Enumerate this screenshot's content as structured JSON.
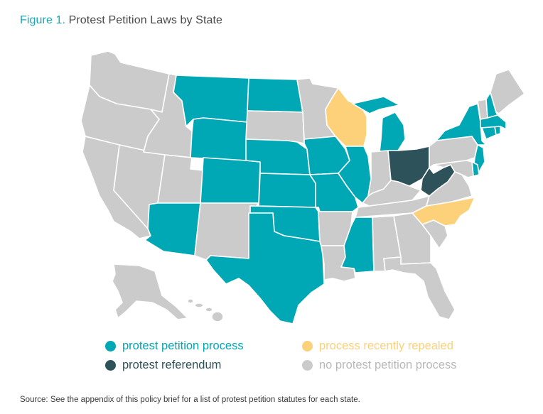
{
  "title": {
    "prefix": "Figure 1.",
    "text": "Protest Petition Laws by State"
  },
  "colors": {
    "petition": "#00a7b4",
    "referendum": "#2e5259",
    "repealed": "#fdd07a",
    "none": "#cbcbcb",
    "border": "#ffffff"
  },
  "legend": {
    "petition": "protest petition process",
    "repealed": "process recently repealed",
    "referendum": "protest referendum",
    "none": "no protest petition process"
  },
  "states": {
    "petition": [
      "MT",
      "ND",
      "WY",
      "NE",
      "CO",
      "KS",
      "AZ",
      "OK",
      "TX",
      "IA",
      "MO",
      "IL",
      "MI",
      "MS",
      "NY",
      "NH",
      "MA",
      "CT",
      "RI",
      "NJ",
      "DE"
    ],
    "referendum": [
      "OH",
      "WV"
    ],
    "repealed": [
      "WI",
      "NC"
    ],
    "none": [
      "WA",
      "OR",
      "CA",
      "NV",
      "ID",
      "UT",
      "NM",
      "SD",
      "MN",
      "AR",
      "LA",
      "IN",
      "KY",
      "TN",
      "AL",
      "GA",
      "FL",
      "SC",
      "VA",
      "MD",
      "PA",
      "VT",
      "ME",
      "AK",
      "HI"
    ]
  },
  "source": "Source: See the appendix of this policy brief for a list of protest petition statutes for each state."
}
